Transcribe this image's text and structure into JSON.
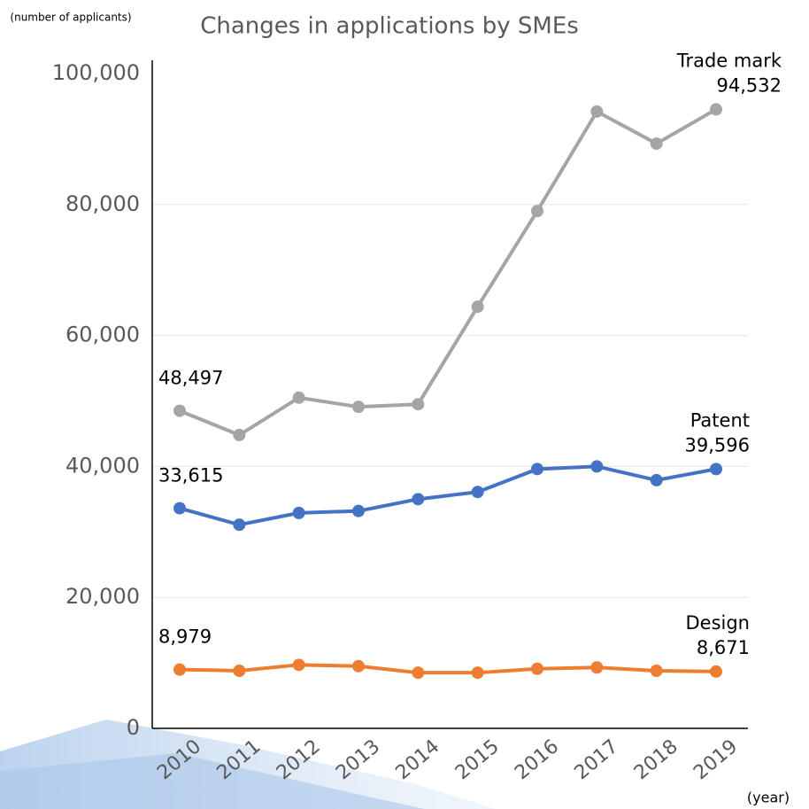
{
  "chart_data": {
    "type": "line",
    "title": "Changes in applications by SMEs",
    "y_label": "(number of applicants)",
    "x_label": "(year)",
    "categories": [
      "2010",
      "2011",
      "2012",
      "2013",
      "2014",
      "2015",
      "2016",
      "2017",
      "2018",
      "2019"
    ],
    "series": [
      {
        "name": "Trade mark",
        "color": "#a5a5a5",
        "values": [
          48497,
          44800,
          50500,
          49100,
          49500,
          64400,
          79000,
          94200,
          89300,
          94532
        ],
        "value_labels": [
          "48,497",
          null,
          null,
          null,
          null,
          null,
          null,
          null,
          null,
          "94,532"
        ]
      },
      {
        "name": "Patent",
        "color": "#4472c4",
        "values": [
          33615,
          31100,
          32900,
          33200,
          35000,
          36100,
          39600,
          40000,
          37900,
          39596
        ],
        "value_labels": [
          "33,615",
          null,
          null,
          null,
          null,
          null,
          null,
          null,
          null,
          "39,596"
        ]
      },
      {
        "name": "Design",
        "color": "#ed7d31",
        "values": [
          8979,
          8800,
          9700,
          9500,
          8500,
          8500,
          9100,
          9300,
          8800,
          8671
        ],
        "value_labels": [
          "8,979",
          null,
          null,
          null,
          null,
          null,
          null,
          null,
          null,
          "8,671"
        ]
      }
    ],
    "ylim": [
      0,
      100000
    ],
    "yticks": [
      0,
      {
        "value": 20000,
        "label": "20,000"
      },
      {
        "value": 40000,
        "label": "40,000"
      },
      {
        "value": 60000,
        "label": "60,000"
      },
      {
        "value": 80000,
        "label": "80,000"
      },
      {
        "value": 100000,
        "label": "100,000"
      }
    ],
    "grid": true
  }
}
